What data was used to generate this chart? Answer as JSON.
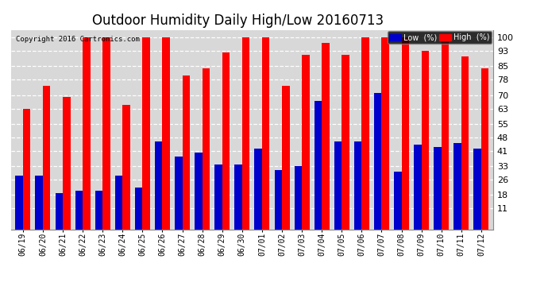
{
  "title": "Outdoor Humidity Daily High/Low 20160713",
  "copyright": "Copyright 2016 Cartronics.com",
  "categories": [
    "06/19",
    "06/20",
    "06/21",
    "06/22",
    "06/23",
    "06/24",
    "06/25",
    "06/26",
    "06/27",
    "06/28",
    "06/29",
    "06/30",
    "07/01",
    "07/02",
    "07/03",
    "07/04",
    "07/05",
    "07/06",
    "07/07",
    "07/08",
    "07/09",
    "07/10",
    "07/11",
    "07/12"
  ],
  "high_values": [
    63,
    75,
    69,
    100,
    100,
    65,
    100,
    100,
    80,
    84,
    92,
    100,
    100,
    75,
    91,
    97,
    91,
    100,
    100,
    100,
    93,
    100,
    90,
    84
  ],
  "low_values": [
    28,
    28,
    19,
    20,
    20,
    28,
    22,
    46,
    38,
    40,
    34,
    34,
    42,
    31,
    33,
    67,
    46,
    46,
    71,
    30,
    44,
    43,
    45,
    42
  ],
  "high_color": "#ff0000",
  "low_color": "#0000cc",
  "bg_color": "#ffffff",
  "plot_bg_color": "#d8d8d8",
  "grid_color": "#ffffff",
  "title_fontsize": 12,
  "ylabel_ticks": [
    11,
    18,
    26,
    33,
    41,
    48,
    55,
    63,
    70,
    78,
    85,
    93,
    100
  ],
  "ylim": [
    0,
    104
  ],
  "bar_width": 0.38
}
